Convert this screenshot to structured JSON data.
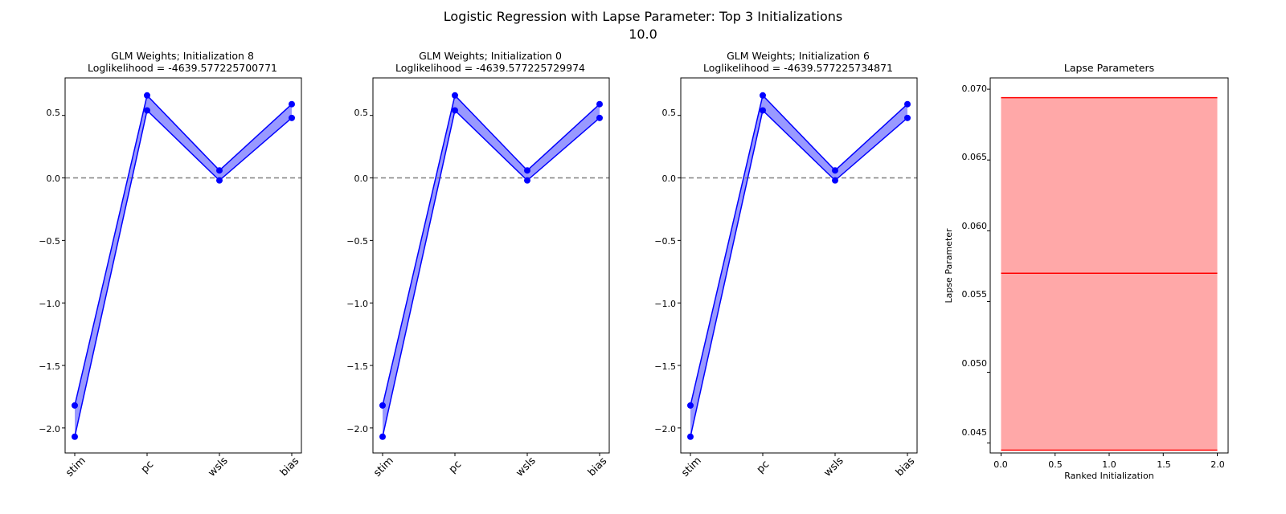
{
  "figure": {
    "title_line1": "Logistic Regression with Lapse Parameter: Top 3 Initializations",
    "title_line2": "10.0"
  },
  "colors": {
    "weights": "#0000ff",
    "band": "#9999ff",
    "zero_line": "#808080",
    "lapse": "#ff0000",
    "lapse_band": "#ffa8a8"
  },
  "chart_data": [
    {
      "type": "line",
      "title_line1": "GLM Weights; Initialization 8",
      "title_line2": "Loglikelihood = -4639.577225700771",
      "categories": [
        "stim",
        "pc",
        "wsls",
        "bias"
      ],
      "series": [
        {
          "values": [
            -1.82,
            0.66,
            0.06,
            0.59
          ]
        },
        {
          "values": [
            -2.07,
            0.54,
            -0.02,
            0.48
          ]
        }
      ],
      "reference_line": 0.0,
      "ylim": [
        -2.2,
        0.8
      ],
      "yticks": [
        -2.0,
        -1.5,
        -1.0,
        -0.5,
        0.0,
        0.5
      ],
      "ytick_labels": [
        "−2.0",
        "−1.5",
        "−1.0",
        "−0.5",
        "0.0",
        "0.5"
      ]
    },
    {
      "type": "line",
      "title_line1": "GLM Weights; Initialization 0",
      "title_line2": "Loglikelihood = -4639.577225729974",
      "categories": [
        "stim",
        "pc",
        "wsls",
        "bias"
      ],
      "series": [
        {
          "values": [
            -1.82,
            0.66,
            0.06,
            0.59
          ]
        },
        {
          "values": [
            -2.07,
            0.54,
            -0.02,
            0.48
          ]
        }
      ],
      "reference_line": 0.0,
      "ylim": [
        -2.2,
        0.8
      ],
      "yticks": [
        -2.0,
        -1.5,
        -1.0,
        -0.5,
        0.0,
        0.5
      ],
      "ytick_labels": [
        "−2.0",
        "−1.5",
        "−1.0",
        "−0.5",
        "0.0",
        "0.5"
      ]
    },
    {
      "type": "line",
      "title_line1": "GLM Weights; Initialization 6",
      "title_line2": "Loglikelihood = -4639.577225734871",
      "categories": [
        "stim",
        "pc",
        "wsls",
        "bias"
      ],
      "series": [
        {
          "values": [
            -1.82,
            0.66,
            0.06,
            0.59
          ]
        },
        {
          "values": [
            -2.07,
            0.54,
            -0.02,
            0.48
          ]
        }
      ],
      "reference_line": 0.0,
      "ylim": [
        -2.2,
        0.8
      ],
      "yticks": [
        -2.0,
        -1.5,
        -1.0,
        -0.5,
        0.0,
        0.5
      ],
      "ytick_labels": [
        "−2.0",
        "−1.5",
        "−1.0",
        "−0.5",
        "0.0",
        "0.5"
      ]
    },
    {
      "type": "area",
      "title": "Lapse Parameters",
      "xlabel": "Ranked Initialization",
      "ylabel": "Lapse Parameter",
      "x": [
        0.0,
        2.0
      ],
      "series": [
        {
          "values": [
            0.0694,
            0.0694
          ]
        },
        {
          "values": [
            0.057,
            0.057
          ]
        },
        {
          "values": [
            0.0445,
            0.0445
          ]
        }
      ],
      "xlim": [
        -0.1,
        2.1
      ],
      "ylim": [
        0.0443,
        0.0708
      ],
      "xticks": [
        0.0,
        0.5,
        1.0,
        1.5,
        2.0
      ],
      "xtick_labels": [
        "0.0",
        "0.5",
        "1.0",
        "1.5",
        "2.0"
      ],
      "yticks": [
        0.045,
        0.05,
        0.055,
        0.06,
        0.065,
        0.07
      ],
      "ytick_labels": [
        "0.045",
        "0.050",
        "0.055",
        "0.060",
        "0.065",
        "0.070"
      ]
    }
  ]
}
